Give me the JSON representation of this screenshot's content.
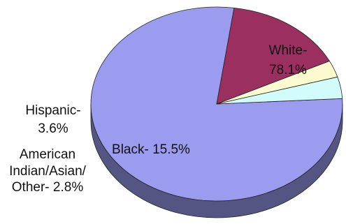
{
  "chart_data": {
    "type": "pie",
    "title": "",
    "slices": [
      {
        "name": "White",
        "value": 78.1,
        "label_lines": [
          "White-",
          "78.1%"
        ],
        "color": "#9b9bf0"
      },
      {
        "name": "Black",
        "value": 15.5,
        "label_lines": [
          "Black- 15.5%"
        ],
        "color": "#9b3060"
      },
      {
        "name": "American Indian/Asian/Other",
        "value": 2.8,
        "label_lines": [
          "American",
          "Indian/Asian/",
          "Other- 2.8%"
        ],
        "color": "#fbfbcf"
      },
      {
        "name": "Hispanic",
        "value": 3.6,
        "label_lines": [
          "Hispanic-",
          "3.6%"
        ],
        "color": "#d2fbfb"
      }
    ],
    "style": "3d"
  }
}
